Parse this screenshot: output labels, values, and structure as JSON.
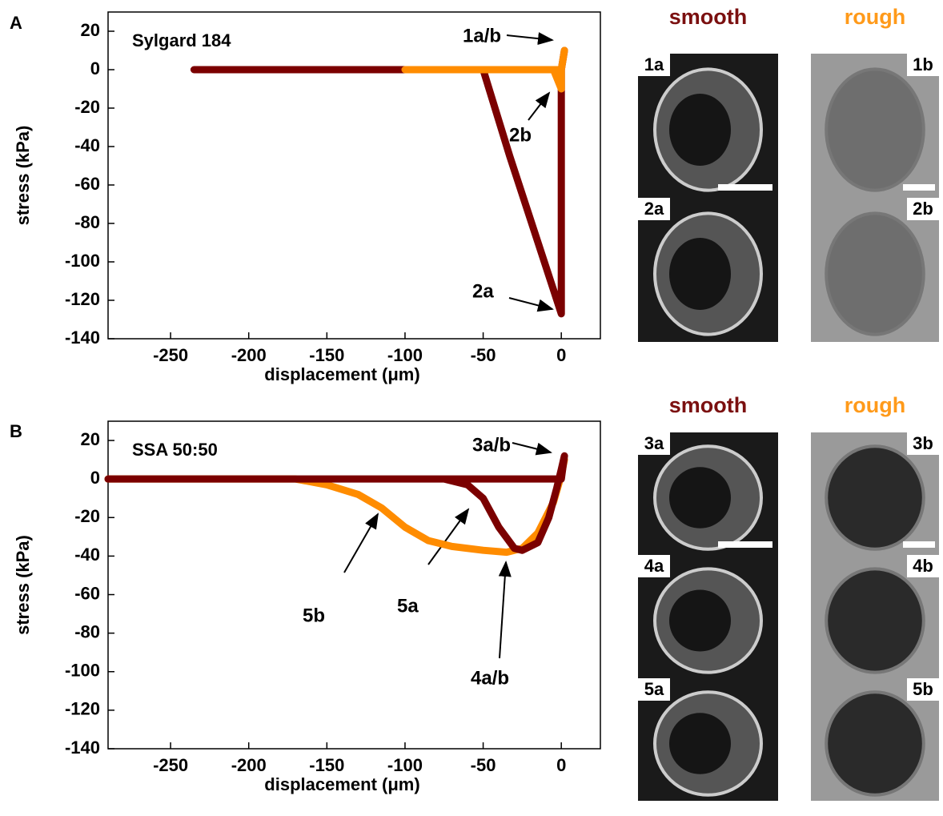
{
  "chart_data": [
    {
      "type": "line",
      "label": "A",
      "title": "Sylgard 184",
      "x_label": "displacement (μm)",
      "y_label": "stress (kPa)",
      "xlim": [
        -290,
        25
      ],
      "ylim": [
        -140,
        30
      ],
      "xticks": [
        -250,
        -200,
        -150,
        -100,
        -50,
        0
      ],
      "yticks": [
        -140,
        -120,
        -100,
        -80,
        -60,
        -40,
        -20,
        0,
        20
      ],
      "series": [
        {
          "color": "#7b0000",
          "x": [
            -235,
            -200,
            -150,
            -100,
            -50,
            -33,
            0,
            0,
            2,
            0
          ],
          "values": [
            0,
            0,
            0,
            0,
            0,
            -45,
            -127,
            0,
            10,
            0
          ]
        },
        {
          "color": "#ff8c00",
          "x": [
            -100,
            -50,
            -5,
            0,
            0,
            2,
            0,
            -5
          ],
          "values": [
            0,
            0,
            0,
            -10,
            0,
            10,
            0,
            0
          ]
        }
      ],
      "annotations": [
        "1a/b",
        "2b",
        "2a"
      ]
    },
    {
      "type": "line",
      "label": "B",
      "title": "SSA 50:50",
      "x_label": "displacement (μm)",
      "y_label": "stress (kPa)",
      "xlim": [
        -290,
        25
      ],
      "ylim": [
        -140,
        30
      ],
      "xticks": [
        -250,
        -200,
        -150,
        -100,
        -50,
        0
      ],
      "yticks": [
        -140,
        -120,
        -100,
        -80,
        -60,
        -40,
        -20,
        0,
        20
      ],
      "series": [
        {
          "color": "#ff8c00",
          "x": [
            -290,
            -170,
            -150,
            -130,
            -115,
            -100,
            -85,
            -70,
            -50,
            -35,
            -25,
            -15,
            -5,
            0,
            2
          ],
          "values": [
            0,
            0,
            -3,
            -8,
            -15,
            -25,
            -32,
            -35,
            -37,
            -38,
            -36,
            -28,
            -12,
            2,
            10
          ]
        },
        {
          "color": "#7b0000",
          "x": [
            -290,
            -100,
            -75,
            -60,
            -50,
            -40,
            -30,
            -25,
            -15,
            -8,
            -3,
            0,
            2,
            0,
            -290
          ],
          "values": [
            0,
            0,
            0,
            -3,
            -10,
            -25,
            -36,
            -37,
            -33,
            -20,
            -5,
            5,
            12,
            0,
            0
          ]
        }
      ],
      "annotations": [
        "3a/b",
        "5b",
        "5a",
        "4a/b"
      ]
    }
  ],
  "micrographs": [
    {
      "headers": [
        "smooth",
        "rough"
      ],
      "labels": [
        "1a",
        "1b",
        "2a",
        "2b"
      ]
    },
    {
      "headers": [
        "smooth",
        "rough"
      ],
      "labels": [
        "3a",
        "3b",
        "4a",
        "4b",
        "5a",
        "5b"
      ]
    }
  ]
}
